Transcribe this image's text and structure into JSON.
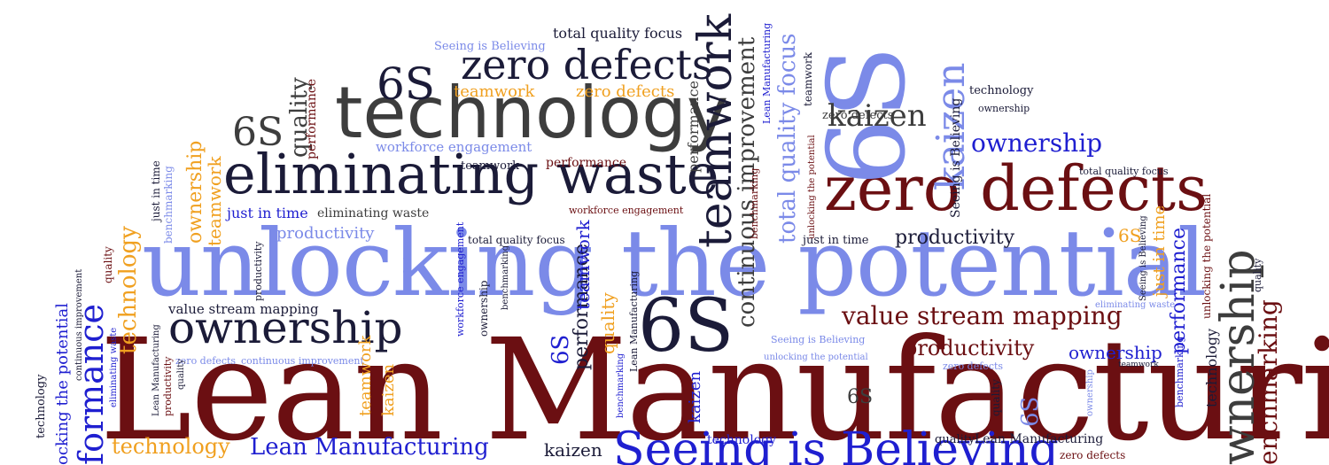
{
  "colors": {
    "maroon": "#6b0f12",
    "dark": "#1b1b38",
    "periwinkle": "#7b8ae8",
    "blue": "#1f1fd0",
    "orange": "#f0a020",
    "gray": "#3d3d3d"
  },
  "words": {
    "lean_manufacturing": "Lean Manufacturing",
    "unlocking_the_potential": "unlocking the potential",
    "technology": "technology",
    "eliminating_waste": "eliminating waste",
    "zero_defects": "zero defects",
    "ownership": "ownership",
    "six_s": "6S",
    "teamwork": "teamwork",
    "kaizen": "kaizen",
    "value_stream_mapping": "value stream mapping",
    "productivity": "productivity",
    "total_quality_focus": "total quality focus",
    "continuous_improvement": "continuous improvement",
    "performance": "performance",
    "quality": "quality",
    "just_in_time": "just in time",
    "benchmarking": "benchmarking",
    "seeing_is_believing": "Seeing is Believing",
    "workforce_engagement": "workforce engagement",
    "formance": "formance",
    "wnership": "wnership",
    "ocking_the_potential": "ocking the potential",
    "enchmarking": "enchmarking"
  }
}
